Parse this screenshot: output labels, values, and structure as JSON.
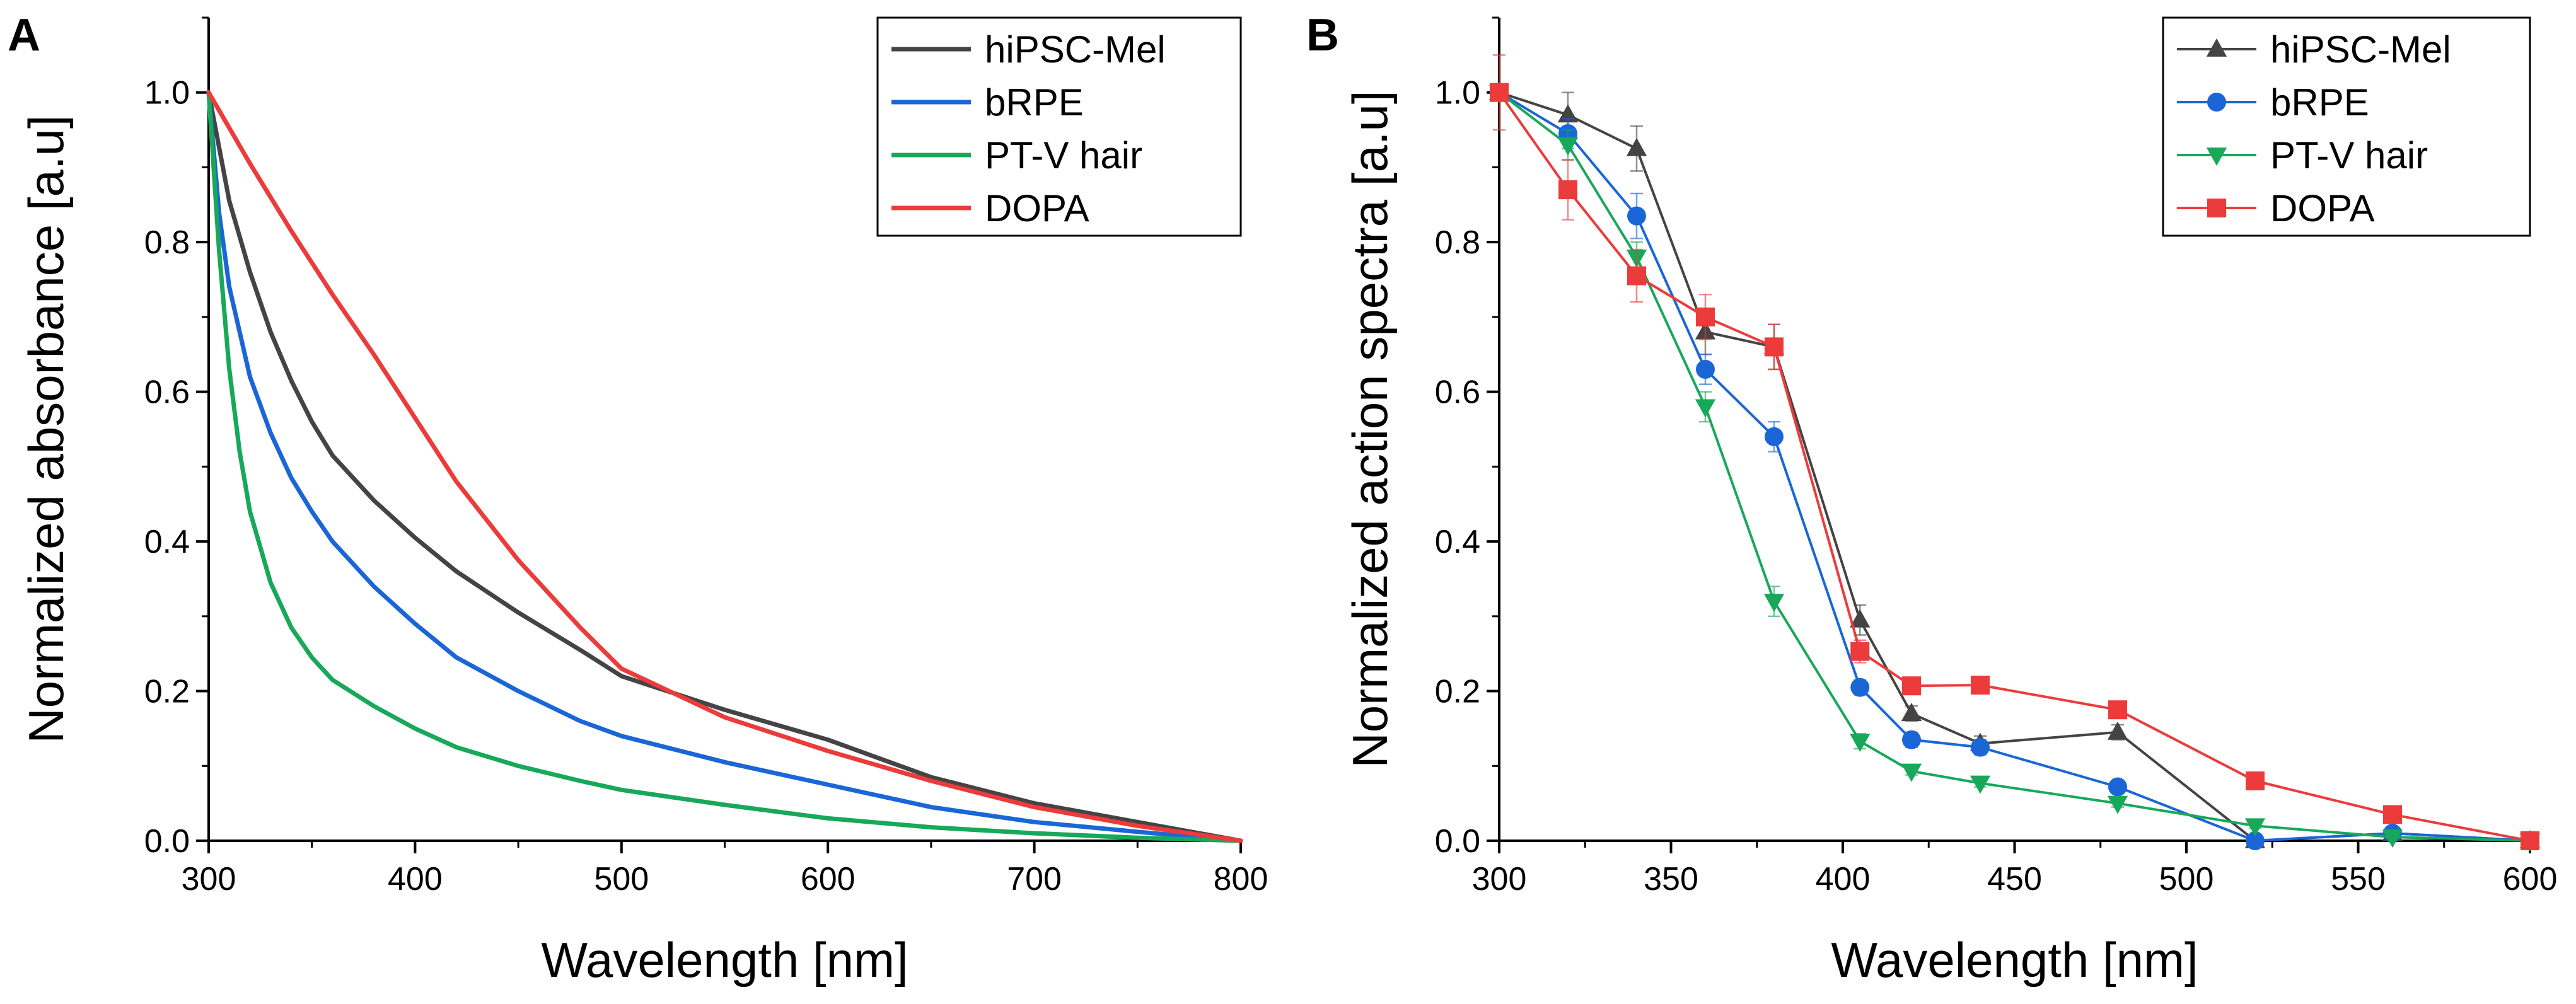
{
  "chart_data": [
    {
      "panel": "A",
      "type": "line",
      "xlabel": "Wavelength [nm]",
      "ylabel": "Normalized absorbance [a.u]",
      "xlim": [
        300,
        800
      ],
      "ylim": [
        0,
        1.1
      ],
      "xticks": [
        300,
        400,
        500,
        600,
        700,
        800
      ],
      "xtick_labels": [
        "300",
        "400",
        "500",
        "600",
        "700",
        "800"
      ],
      "yticks": [
        0,
        0.2,
        0.4,
        0.6,
        0.8,
        1.0
      ],
      "ytick_labels": [
        "0.0",
        "0.2",
        "0.4",
        "0.6",
        "0.8",
        "1.0"
      ],
      "legend_position": "top-right",
      "series": [
        {
          "name": "hiPSC-Mel",
          "color": "#444444",
          "x": [
            300,
            310,
            320,
            330,
            340,
            350,
            360,
            380,
            400,
            420,
            450,
            480,
            500,
            550,
            600,
            650,
            700,
            750,
            800
          ],
          "y": [
            1.0,
            0.855,
            0.76,
            0.68,
            0.615,
            0.56,
            0.515,
            0.455,
            0.405,
            0.36,
            0.305,
            0.255,
            0.22,
            0.175,
            0.135,
            0.085,
            0.05,
            0.025,
            0.0
          ]
        },
        {
          "name": "bRPE",
          "color": "#1a66d6",
          "x": [
            300,
            305,
            310,
            320,
            330,
            340,
            350,
            360,
            380,
            400,
            420,
            450,
            480,
            500,
            550,
            600,
            650,
            700,
            750,
            800
          ],
          "y": [
            1.0,
            0.84,
            0.74,
            0.62,
            0.545,
            0.485,
            0.44,
            0.4,
            0.34,
            0.29,
            0.245,
            0.2,
            0.16,
            0.14,
            0.105,
            0.075,
            0.045,
            0.025,
            0.012,
            0.0
          ]
        },
        {
          "name": "PT-V hair",
          "color": "#18a85a",
          "x": [
            300,
            305,
            310,
            315,
            320,
            330,
            340,
            350,
            360,
            380,
            400,
            420,
            450,
            480,
            500,
            550,
            600,
            650,
            700,
            750,
            800
          ],
          "y": [
            1.0,
            0.79,
            0.63,
            0.52,
            0.44,
            0.345,
            0.285,
            0.245,
            0.215,
            0.18,
            0.15,
            0.125,
            0.1,
            0.08,
            0.068,
            0.048,
            0.03,
            0.018,
            0.01,
            0.004,
            0.0
          ]
        },
        {
          "name": "DOPA",
          "color": "#ec3b3b",
          "x": [
            300,
            320,
            340,
            360,
            380,
            400,
            420,
            450,
            480,
            500,
            550,
            600,
            650,
            700,
            750,
            800
          ],
          "y": [
            1.0,
            0.905,
            0.815,
            0.73,
            0.65,
            0.565,
            0.48,
            0.375,
            0.285,
            0.23,
            0.165,
            0.12,
            0.08,
            0.045,
            0.02,
            0.0
          ]
        }
      ]
    },
    {
      "panel": "B",
      "type": "line",
      "xlabel": "Wavelength [nm]",
      "ylabel": "Normalized action spectra [a.u]",
      "xlim": [
        300,
        600
      ],
      "ylim": [
        0,
        1.1
      ],
      "xticks": [
        300,
        350,
        400,
        450,
        500,
        550,
        600
      ],
      "xtick_labels": [
        "300",
        "350",
        "400",
        "450",
        "500",
        "550",
        "600"
      ],
      "yticks": [
        0,
        0.2,
        0.4,
        0.6,
        0.8,
        1.0
      ],
      "ytick_labels": [
        "0.0",
        "0.2",
        "0.4",
        "0.6",
        "0.8",
        "1.0"
      ],
      "legend_position": "top-right",
      "series": [
        {
          "name": "hiPSC-Mel",
          "color": "#444444",
          "marker": "triangle-up",
          "x": [
            300,
            320,
            340,
            360,
            380,
            405,
            420,
            440,
            480,
            520,
            560,
            600
          ],
          "y": [
            1.0,
            0.97,
            0.925,
            0.68,
            0.66,
            0.295,
            0.17,
            0.13,
            0.145,
            0.0,
            0.01,
            0.0
          ],
          "err": [
            0.0,
            0.03,
            0.03,
            0.03,
            0.03,
            0.02,
            0.01,
            0.01,
            0.01,
            0.0,
            0.0,
            0.0
          ]
        },
        {
          "name": "bRPE",
          "color": "#1a66d6",
          "marker": "circle",
          "x": [
            300,
            320,
            340,
            360,
            380,
            405,
            420,
            440,
            480,
            520,
            560,
            600
          ],
          "y": [
            1.0,
            0.945,
            0.835,
            0.63,
            0.54,
            0.205,
            0.135,
            0.125,
            0.072,
            0.0,
            0.01,
            0.0
          ],
          "err": [
            0.0,
            0.02,
            0.03,
            0.02,
            0.02,
            0.01,
            0.01,
            0.01,
            0.005,
            0.0,
            0.0,
            0.0
          ]
        },
        {
          "name": "PT-V hair",
          "color": "#18a85a",
          "marker": "triangle-down",
          "x": [
            300,
            320,
            340,
            360,
            380,
            405,
            420,
            440,
            480,
            520,
            560,
            600
          ],
          "y": [
            1.0,
            0.93,
            0.78,
            0.58,
            0.32,
            0.133,
            0.093,
            0.077,
            0.05,
            0.02,
            0.005,
            0.0
          ],
          "err": [
            0.0,
            0.02,
            0.02,
            0.02,
            0.02,
            0.01,
            0.005,
            0.005,
            0.005,
            0.003,
            0.0,
            0.0
          ]
        },
        {
          "name": "DOPA",
          "color": "#ec3b3b",
          "marker": "square",
          "x": [
            300,
            320,
            340,
            360,
            380,
            405,
            420,
            440,
            480,
            520,
            560,
            600
          ],
          "y": [
            1.0,
            0.87,
            0.755,
            0.7,
            0.66,
            0.253,
            0.207,
            0.208,
            0.175,
            0.08,
            0.035,
            0.0
          ],
          "err": [
            0.05,
            0.04,
            0.035,
            0.03,
            0.03,
            0.015,
            0.01,
            0.01,
            0.008,
            0.005,
            0.005,
            0.0
          ]
        }
      ]
    }
  ]
}
